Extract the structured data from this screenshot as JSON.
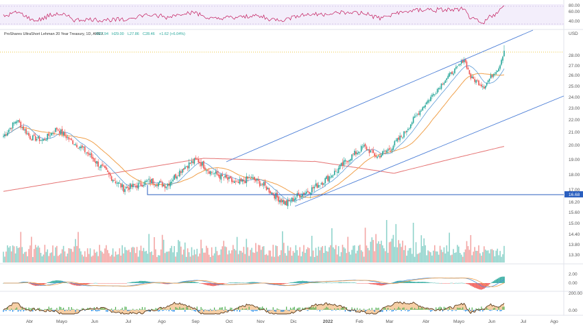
{
  "chart_data": {
    "type": "candlestick",
    "symbol_line": "ProShares UltraShort Lehman 20 Year Treasury, 1D, AMEX",
    "ohlc_text": {
      "open": "O27.94",
      "high": "H29.00",
      "low": "L27.86",
      "close": "C28.46",
      "change": "+1.62 (+6.04%)"
    },
    "currency": "USD",
    "price_ticks": [
      "28.00",
      "27.00",
      "26.00",
      "25.00",
      "24.00",
      "23.00",
      "22.00",
      "21.00",
      "20.00",
      "19.00",
      "18.00",
      "17.00",
      "16.20",
      "15.60",
      "15.00",
      "14.40",
      "13.80",
      "13.30"
    ],
    "price_range": [
      13.3,
      28.0
    ],
    "highlight_price": "16.68",
    "rsi_ticks": [
      "80.00",
      "60.00",
      "40.00"
    ],
    "macd_ticks": [
      "2.00",
      "0.00"
    ],
    "osc_ticks": [
      "200.00",
      "0.00"
    ],
    "months": [
      "Abr",
      "Mayo",
      "Jun",
      "Jul",
      "Ago",
      "Sep",
      "Oct",
      "Nov",
      "Dic",
      "2022",
      "Feb",
      "Mar",
      "Abr",
      "Mayo",
      "Jun",
      "Jul",
      "Ago"
    ],
    "anchors": [
      {
        "d": 0,
        "v": 20.7
      },
      {
        "d": 10,
        "v": 22.0
      },
      {
        "d": 20,
        "v": 20.6
      },
      {
        "d": 30,
        "v": 20.4
      },
      {
        "d": 40,
        "v": 21.3
      },
      {
        "d": 50,
        "v": 20.4
      },
      {
        "d": 60,
        "v": 19.7
      },
      {
        "d": 70,
        "v": 18.8
      },
      {
        "d": 80,
        "v": 17.9
      },
      {
        "d": 90,
        "v": 17.1
      },
      {
        "d": 100,
        "v": 17.3
      },
      {
        "d": 110,
        "v": 17.6
      },
      {
        "d": 122,
        "v": 17.3
      },
      {
        "d": 135,
        "v": 18.5
      },
      {
        "d": 145,
        "v": 19.0
      },
      {
        "d": 155,
        "v": 18.2
      },
      {
        "d": 165,
        "v": 17.8
      },
      {
        "d": 175,
        "v": 17.4
      },
      {
        "d": 185,
        "v": 17.8
      },
      {
        "d": 195,
        "v": 17.3
      },
      {
        "d": 205,
        "v": 16.5
      },
      {
        "d": 212,
        "v": 16.1
      },
      {
        "d": 220,
        "v": 16.6
      },
      {
        "d": 230,
        "v": 17.0
      },
      {
        "d": 240,
        "v": 17.6
      },
      {
        "d": 250,
        "v": 18.3
      },
      {
        "d": 260,
        "v": 19.2
      },
      {
        "d": 270,
        "v": 19.9
      },
      {
        "d": 280,
        "v": 19.2
      },
      {
        "d": 290,
        "v": 19.8
      },
      {
        "d": 300,
        "v": 20.9
      },
      {
        "d": 310,
        "v": 22.5
      },
      {
        "d": 320,
        "v": 24.0
      },
      {
        "d": 330,
        "v": 25.5
      },
      {
        "d": 340,
        "v": 26.8
      },
      {
        "d": 345,
        "v": 27.7
      },
      {
        "d": 350,
        "v": 25.8
      },
      {
        "d": 360,
        "v": 25.0
      },
      {
        "d": 367,
        "v": 26.2
      },
      {
        "d": 371,
        "v": 26.8
      },
      {
        "d": 375,
        "v": 28.5
      }
    ],
    "legend": "none",
    "grid": false
  }
}
